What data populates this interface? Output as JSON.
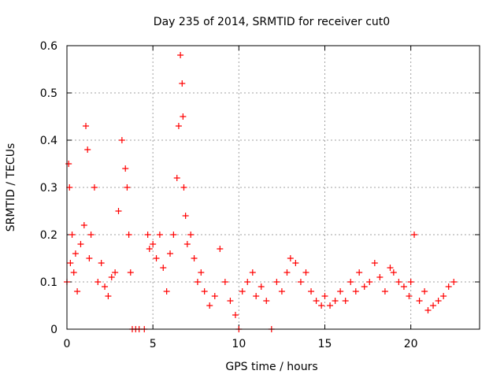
{
  "chart_data": {
    "type": "scatter",
    "title": "Day 235 of 2014, SRMTID for receiver cut0",
    "xlabel": "GPS time / hours",
    "ylabel": "SRMTID / TECUs",
    "xlim": [
      0,
      24
    ],
    "ylim": [
      0,
      0.6
    ],
    "x_ticks": [
      "0",
      "5",
      "10",
      "15",
      "20"
    ],
    "y_ticks": [
      "0",
      "0.1",
      "0.2",
      "0.3",
      "0.4",
      "0.5",
      "0.6"
    ],
    "grid": true,
    "marker": "+",
    "color": "#ff0000",
    "series": [
      {
        "name": "SRMTID",
        "x": [
          0.0,
          0.1,
          0.15,
          0.2,
          0.3,
          0.4,
          0.5,
          0.6,
          0.8,
          1.0,
          1.1,
          1.2,
          1.3,
          1.4,
          1.6,
          1.8,
          2.0,
          2.2,
          2.4,
          2.6,
          2.8,
          3.0,
          3.2,
          3.4,
          3.5,
          3.6,
          3.7,
          3.8,
          4.0,
          4.2,
          4.5,
          4.7,
          4.8,
          5.0,
          5.2,
          5.4,
          5.6,
          5.8,
          6.0,
          6.2,
          6.4,
          6.5,
          6.6,
          6.7,
          6.75,
          6.8,
          6.9,
          7.0,
          7.2,
          7.4,
          7.6,
          7.8,
          8.0,
          8.3,
          8.6,
          8.9,
          9.2,
          9.5,
          9.8,
          10.0,
          10.2,
          10.5,
          10.8,
          11.0,
          11.3,
          11.6,
          11.9,
          12.2,
          12.5,
          12.8,
          13.0,
          13.3,
          13.6,
          13.9,
          14.2,
          14.5,
          14.8,
          15.0,
          15.3,
          15.6,
          15.9,
          16.2,
          16.5,
          16.8,
          17.0,
          17.3,
          17.6,
          17.9,
          18.2,
          18.5,
          18.8,
          19.0,
          19.3,
          19.6,
          19.9,
          20.0,
          20.2,
          20.5,
          20.8,
          21.0,
          21.3,
          21.6,
          21.9,
          22.2,
          22.5
        ],
        "y": [
          0.1,
          0.35,
          0.3,
          0.14,
          0.2,
          0.12,
          0.16,
          0.08,
          0.18,
          0.22,
          0.43,
          0.38,
          0.15,
          0.2,
          0.3,
          0.1,
          0.14,
          0.09,
          0.07,
          0.11,
          0.12,
          0.25,
          0.4,
          0.34,
          0.3,
          0.2,
          0.12,
          0.0,
          0.0,
          0.0,
          0.0,
          0.2,
          0.17,
          0.18,
          0.15,
          0.2,
          0.13,
          0.08,
          0.16,
          0.2,
          0.32,
          0.43,
          0.58,
          0.52,
          0.45,
          0.3,
          0.24,
          0.18,
          0.2,
          0.15,
          0.1,
          0.12,
          0.08,
          0.05,
          0.07,
          0.17,
          0.1,
          0.06,
          0.03,
          0.0,
          0.08,
          0.1,
          0.12,
          0.07,
          0.09,
          0.06,
          0.0,
          0.1,
          0.08,
          0.12,
          0.15,
          0.14,
          0.1,
          0.12,
          0.08,
          0.06,
          0.05,
          0.07,
          0.05,
          0.06,
          0.08,
          0.06,
          0.1,
          0.08,
          0.12,
          0.09,
          0.1,
          0.14,
          0.11,
          0.08,
          0.13,
          0.12,
          0.1,
          0.09,
          0.07,
          0.1,
          0.2,
          0.06,
          0.08,
          0.04,
          0.05,
          0.06,
          0.07,
          0.09,
          0.1
        ]
      }
    ]
  }
}
